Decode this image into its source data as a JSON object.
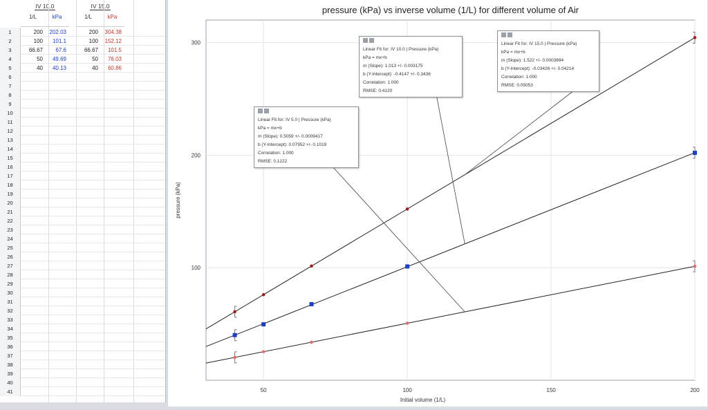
{
  "table": {
    "sets": [
      {
        "name": "IV 10.0",
        "col1": "1/L",
        "col2": "kPa",
        "col2_color": "#1f3fbf",
        "rows": [
          [
            "200",
            "202.03"
          ],
          [
            "100",
            "101.1"
          ],
          [
            "66.67",
            "67.6"
          ],
          [
            "50",
            "49.69"
          ],
          [
            "40",
            "40.13"
          ]
        ]
      },
      {
        "name": "IV 15.0",
        "col1": "1/L",
        "col2": "kPa",
        "col2_color": "#c0392b",
        "rows": [
          [
            "200",
            "304.38"
          ],
          [
            "100",
            "152.12"
          ],
          [
            "66.67",
            "101.5"
          ],
          [
            "50",
            "76.03"
          ],
          [
            "40",
            "60.86"
          ]
        ]
      }
    ],
    "row_numbers": [
      "1",
      "2",
      "3",
      "4",
      "5",
      "6",
      "7",
      "8",
      "9",
      "10",
      "11",
      "12",
      "13",
      "14",
      "15",
      "16",
      "17",
      "18",
      "19",
      "20",
      "21",
      "22",
      "23",
      "24",
      "25",
      "26",
      "27",
      "28",
      "29",
      "30",
      "31",
      "32",
      "33",
      "34",
      "35",
      "36",
      "37",
      "38",
      "39",
      "40",
      "41"
    ]
  },
  "chart_data": {
    "type": "scatter",
    "title": "pressure (kPa) vs inverse volume (1/L) for different volume of Air",
    "xlabel": "Initial volume (1/L)",
    "ylabel": "pressure (kPa)",
    "xlim": [
      30,
      200
    ],
    "ylim": [
      0,
      320
    ],
    "xticks": [
      50,
      100,
      150,
      200
    ],
    "yticks": [
      100,
      200,
      300
    ],
    "grid": true,
    "series": [
      {
        "name": "IV 5.0",
        "color": "#e07070",
        "marker": "circle",
        "x": [
          40,
          50,
          66.67,
          100,
          200
        ],
        "y": [
          20.3,
          25.4,
          33.8,
          50.7,
          101.3
        ],
        "fit": {
          "m": 0.5059,
          "b": 0.07952
        }
      },
      {
        "name": "IV 10.0",
        "color": "#1f3fbf",
        "marker": "square",
        "x": [
          40,
          50,
          66.67,
          100,
          200
        ],
        "y": [
          40.13,
          49.69,
          67.6,
          101.1,
          202.03
        ],
        "fit": {
          "m": 1.013,
          "b": -0.4147
        }
      },
      {
        "name": "IV 15.0",
        "color": "#a02020",
        "marker": "circle",
        "x": [
          40,
          50,
          66.67,
          100,
          200
        ],
        "y": [
          60.86,
          76.03,
          101.5,
          152.12,
          304.38
        ],
        "fit": {
          "m": 1.522,
          "b": -0.03426
        }
      }
    ],
    "fit_boxes": [
      {
        "series": "IV 5.0",
        "lines": [
          "Linear Fit for: IV 5.0 | Pressure (kPa)",
          "kPa = mx+b",
          "m (Slope): 0.5059 +/- 0.0009417",
          "b (Y-Intercept): 0.07952 +/- 0.1019",
          "Correlation: 1.000",
          "RMSE: 0.1222"
        ],
        "anchor_x": 120
      },
      {
        "series": "IV 10.0",
        "lines": [
          "Linear Fit for: IV 10.0 | Pressure (kPa)",
          "kPa = mx+b",
          "m (Slope): 1.013 +/- 0.003175",
          "b (Y-Intercept): -0.4147 +/- 0.3436",
          "Correlation: 1.000",
          "RMSE: 0.4120"
        ],
        "anchor_x": 120
      },
      {
        "series": "IV 15.0",
        "lines": [
          "Linear Fit for: IV 15.0 | Pressure (kPa)",
          "kPa = mx+b",
          "m (Slope): 1.522 +/- 0.0003894",
          "b (Y-Intercept): -0.03426 +/- 0.04214",
          "Correlation: 1.000",
          "RMSE: 0.05053"
        ],
        "anchor_x": 120
      }
    ]
  }
}
